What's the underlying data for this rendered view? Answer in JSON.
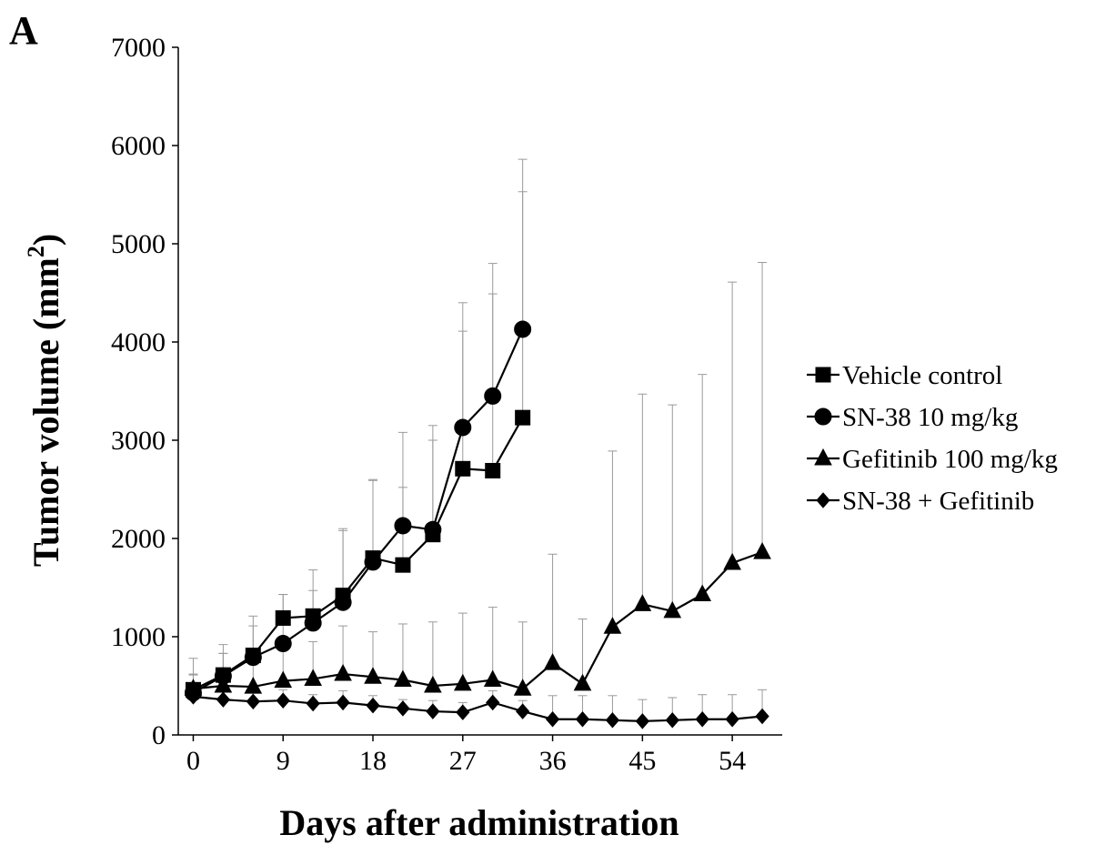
{
  "panel_label": "A",
  "chart_data": {
    "type": "line",
    "title": "",
    "xlabel": "Days after administration",
    "ylabel": "Tumor volume (mm",
    "ylabel_sup": "2",
    "ylabel_close": ")",
    "xlim": [
      -1.5,
      59
    ],
    "ylim": [
      0,
      7000
    ],
    "x_ticks": [
      0,
      9,
      18,
      27,
      36,
      45,
      54
    ],
    "y_ticks": [
      0,
      1000,
      2000,
      3000,
      4000,
      5000,
      6000,
      7000
    ],
    "grid": false,
    "legend_position": "right",
    "series": [
      {
        "name": "Vehicle control",
        "marker": "square",
        "x": [
          0,
          3,
          6,
          9,
          12,
          15,
          18,
          21,
          24,
          27,
          30,
          33
        ],
        "y": [
          460,
          610,
          810,
          1190,
          1210,
          1420,
          1800,
          1730,
          2040,
          2710,
          2690,
          3230
        ],
        "err": [
          160,
          220,
          300,
          240,
          260,
          680,
          800,
          790,
          960,
          1400,
          1800,
          2300
        ]
      },
      {
        "name": "SN-38  10 mg/kg",
        "marker": "circle",
        "x": [
          0,
          3,
          6,
          9,
          12,
          15,
          18,
          21,
          24,
          27,
          30,
          33
        ],
        "y": [
          430,
          600,
          790,
          930,
          1140,
          1350,
          1760,
          2130,
          2090,
          3130,
          3450,
          4130
        ],
        "err": [
          180,
          320,
          420,
          500,
          540,
          730,
          830,
          950,
          1060,
          1270,
          1350,
          1730
        ]
      },
      {
        "name": "Gefitinib 100 mg/kg",
        "marker": "triangle",
        "x": [
          0,
          3,
          6,
          9,
          12,
          15,
          18,
          21,
          24,
          27,
          30,
          33,
          36,
          39,
          42,
          45,
          48,
          51,
          54,
          57
        ],
        "y": [
          470,
          500,
          490,
          550,
          570,
          620,
          590,
          560,
          500,
          520,
          560,
          470,
          730,
          520,
          1100,
          1330,
          1260,
          1430,
          1750,
          1860
        ],
        "err": [
          310,
          330,
          380,
          410,
          380,
          490,
          460,
          570,
          650,
          720,
          740,
          680,
          1110,
          660,
          1790,
          2140,
          2100,
          2240,
          2860,
          2950
        ]
      },
      {
        "name": "SN-38 + Gefitinib",
        "marker": "diamond",
        "x": [
          0,
          3,
          6,
          9,
          12,
          15,
          18,
          21,
          24,
          27,
          30,
          33,
          36,
          39,
          42,
          45,
          48,
          51,
          54,
          57
        ],
        "y": [
          390,
          360,
          340,
          350,
          320,
          330,
          300,
          270,
          240,
          230,
          330,
          240,
          160,
          160,
          150,
          140,
          150,
          160,
          160,
          190
        ],
        "err": [
          100,
          90,
          100,
          110,
          90,
          120,
          100,
          90,
          110,
          100,
          120,
          110,
          240,
          240,
          250,
          220,
          230,
          250,
          250,
          270
        ]
      }
    ]
  }
}
